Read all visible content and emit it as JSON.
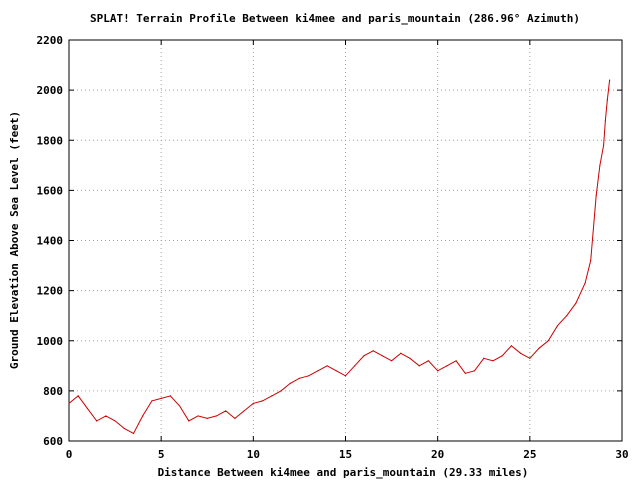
{
  "chart_data": {
    "type": "line",
    "title": "SPLAT! Terrain Profile Between ki4mee and paris_mountain (286.96° Azimuth)",
    "xlabel": "Distance Between ki4mee and paris_mountain (29.33 miles)",
    "ylabel": "Ground Elevation Above Sea Level (feet)",
    "xlim": [
      0,
      30
    ],
    "ylim": [
      600,
      2200
    ],
    "x_ticks": [
      0,
      5,
      10,
      15,
      20,
      25,
      30
    ],
    "y_ticks": [
      600,
      800,
      1000,
      1200,
      1400,
      1600,
      1800,
      2000,
      2200
    ],
    "grid": true,
    "series": [
      {
        "color": "#cc0000",
        "x": [
          0,
          0.5,
          1.0,
          1.5,
          2.0,
          2.5,
          3.0,
          3.5,
          4.0,
          4.5,
          5.0,
          5.5,
          6.0,
          6.5,
          7.0,
          7.5,
          8.0,
          8.5,
          9.0,
          9.5,
          10.0,
          10.5,
          11.0,
          11.5,
          12.0,
          12.5,
          13.0,
          13.5,
          14.0,
          14.5,
          15.0,
          15.5,
          16.0,
          16.5,
          17.0,
          17.5,
          18.0,
          18.5,
          19.0,
          19.5,
          20.0,
          20.5,
          21.0,
          21.5,
          22.0,
          22.5,
          23.0,
          23.5,
          24.0,
          24.5,
          25.0,
          25.5,
          26.0,
          26.5,
          27.0,
          27.5,
          28.0,
          28.3,
          28.6,
          28.8,
          29.0,
          29.1,
          29.2,
          29.33
        ],
        "y": [
          750,
          780,
          730,
          680,
          700,
          680,
          650,
          630,
          700,
          760,
          770,
          780,
          740,
          680,
          700,
          690,
          700,
          720,
          690,
          720,
          750,
          760,
          780,
          800,
          830,
          850,
          860,
          880,
          900,
          880,
          860,
          900,
          940,
          960,
          940,
          920,
          950,
          930,
          900,
          920,
          880,
          900,
          920,
          870,
          880,
          930,
          920,
          940,
          980,
          950,
          930,
          970,
          1000,
          1060,
          1100,
          1150,
          1230,
          1320,
          1580,
          1700,
          1780,
          1880,
          1960,
          2040
        ]
      }
    ]
  }
}
